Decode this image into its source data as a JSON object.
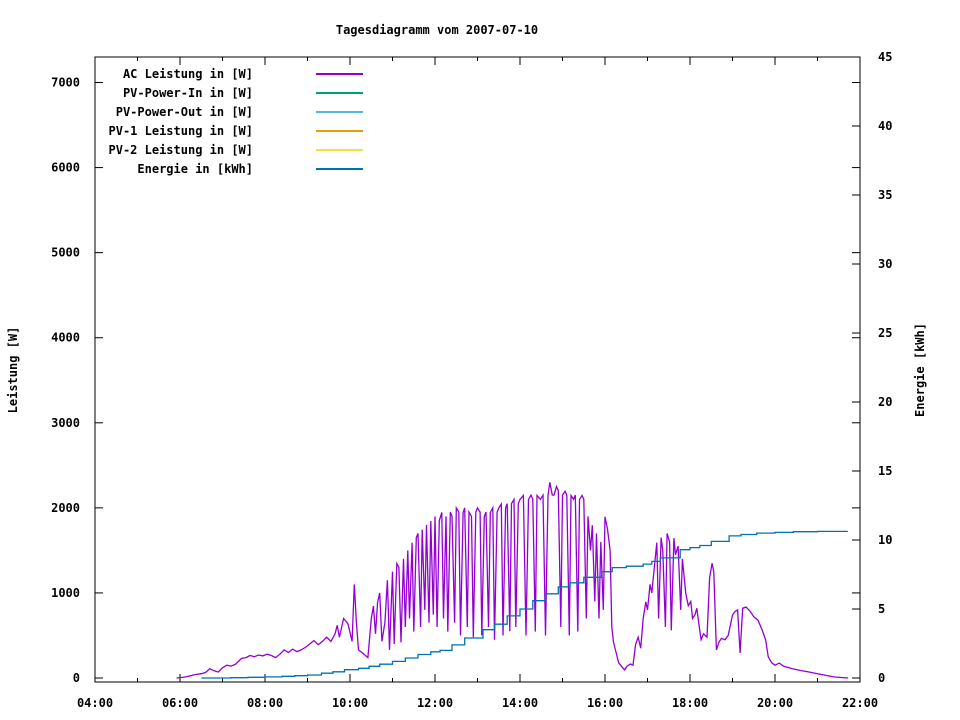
{
  "title": "Tagesdiagramm vom 2007-07-10",
  "chart_data": {
    "type": "line",
    "title": "Tagesdiagramm vom 2007-07-10",
    "legend_position": "top-left-inside",
    "grid": false,
    "x_axis": {
      "label": "",
      "unit": "time",
      "range_hours": [
        4,
        22
      ],
      "major_ticks": [
        {
          "hour": 4,
          "label": "04:00"
        },
        {
          "hour": 6,
          "label": "06:00"
        },
        {
          "hour": 8,
          "label": "08:00"
        },
        {
          "hour": 10,
          "label": "10:00"
        },
        {
          "hour": 12,
          "label": "12:00"
        },
        {
          "hour": 14,
          "label": "14:00"
        },
        {
          "hour": 16,
          "label": "16:00"
        },
        {
          "hour": 18,
          "label": "18:00"
        },
        {
          "hour": 20,
          "label": "20:00"
        },
        {
          "hour": 22,
          "label": "22:00"
        }
      ],
      "minor_tick_hours": [
        5,
        7,
        9,
        11,
        13,
        15,
        17,
        19,
        21
      ]
    },
    "y_left": {
      "label": "Leistung [W]",
      "range": [
        0,
        7300
      ],
      "tick_values": [
        0,
        1000,
        2000,
        3000,
        4000,
        5000,
        6000,
        7000
      ],
      "tick_labels": [
        "0",
        "1000",
        "2000",
        "3000",
        "4000",
        "5000",
        "6000",
        "7000"
      ]
    },
    "y_right": {
      "label": "Energie [kWh]",
      "range": [
        0,
        45
      ],
      "tick_values": [
        0,
        5,
        10,
        15,
        20,
        25,
        30,
        35,
        40,
        45
      ],
      "tick_labels": [
        "0",
        "5",
        "10",
        "15",
        "20",
        "25",
        "30",
        "35",
        "40",
        "45"
      ]
    },
    "series": [
      {
        "name": "AC Leistung in [W]",
        "color": "#9400d3",
        "axis": "left",
        "style": "line",
        "points": [
          [
            5.92,
            0
          ],
          [
            6.1,
            10
          ],
          [
            6.2,
            20
          ],
          [
            6.35,
            40
          ],
          [
            6.5,
            50
          ],
          [
            6.6,
            65
          ],
          [
            6.7,
            110
          ],
          [
            6.8,
            85
          ],
          [
            6.9,
            70
          ],
          [
            7.0,
            120
          ],
          [
            7.1,
            150
          ],
          [
            7.2,
            140
          ],
          [
            7.3,
            160
          ],
          [
            7.45,
            230
          ],
          [
            7.55,
            240
          ],
          [
            7.65,
            265
          ],
          [
            7.75,
            250
          ],
          [
            7.85,
            270
          ],
          [
            7.95,
            260
          ],
          [
            8.05,
            280
          ],
          [
            8.15,
            265
          ],
          [
            8.25,
            240
          ],
          [
            8.35,
            280
          ],
          [
            8.45,
            330
          ],
          [
            8.55,
            300
          ],
          [
            8.65,
            340
          ],
          [
            8.75,
            310
          ],
          [
            8.85,
            330
          ],
          [
            8.95,
            360
          ],
          [
            9.05,
            400
          ],
          [
            9.15,
            440
          ],
          [
            9.25,
            390
          ],
          [
            9.35,
            430
          ],
          [
            9.45,
            480
          ],
          [
            9.55,
            430
          ],
          [
            9.65,
            520
          ],
          [
            9.7,
            620
          ],
          [
            9.75,
            480
          ],
          [
            9.85,
            700
          ],
          [
            9.95,
            640
          ],
          [
            10.05,
            430
          ],
          [
            10.1,
            1100
          ],
          [
            10.15,
            650
          ],
          [
            10.2,
            330
          ],
          [
            10.3,
            290
          ],
          [
            10.42,
            240
          ],
          [
            10.5,
            700
          ],
          [
            10.55,
            845
          ],
          [
            10.6,
            520
          ],
          [
            10.65,
            890
          ],
          [
            10.7,
            1000
          ],
          [
            10.75,
            430
          ],
          [
            10.82,
            650
          ],
          [
            10.88,
            1150
          ],
          [
            10.93,
            330
          ],
          [
            11.0,
            1250
          ],
          [
            11.04,
            400
          ],
          [
            11.1,
            1345
          ],
          [
            11.15,
            1300
          ],
          [
            11.2,
            420
          ],
          [
            11.26,
            1400
          ],
          [
            11.3,
            600
          ],
          [
            11.36,
            1500
          ],
          [
            11.4,
            700
          ],
          [
            11.46,
            1590
          ],
          [
            11.5,
            545
          ],
          [
            11.56,
            1650
          ],
          [
            11.6,
            1700
          ],
          [
            11.66,
            600
          ],
          [
            11.7,
            1745
          ],
          [
            11.76,
            800
          ],
          [
            11.8,
            1800
          ],
          [
            11.86,
            650
          ],
          [
            11.9,
            1845
          ],
          [
            11.96,
            745
          ],
          [
            12.0,
            1900
          ],
          [
            12.05,
            600
          ],
          [
            12.1,
            1850
          ],
          [
            12.16,
            1945
          ],
          [
            12.2,
            700
          ],
          [
            12.26,
            1900
          ],
          [
            12.3,
            545
          ],
          [
            12.36,
            1950
          ],
          [
            12.4,
            1900
          ],
          [
            12.46,
            650
          ],
          [
            12.5,
            2000
          ],
          [
            12.56,
            1950
          ],
          [
            12.6,
            500
          ],
          [
            12.66,
            1945
          ],
          [
            12.7,
            2000
          ],
          [
            12.76,
            600
          ],
          [
            12.8,
            1950
          ],
          [
            12.86,
            1900
          ],
          [
            12.9,
            480
          ],
          [
            12.96,
            1950
          ],
          [
            13.0,
            2000
          ],
          [
            13.06,
            1950
          ],
          [
            13.1,
            500
          ],
          [
            13.16,
            1900
          ],
          [
            13.2,
            1950
          ],
          [
            13.26,
            600
          ],
          [
            13.3,
            1945
          ],
          [
            13.36,
            2000
          ],
          [
            13.4,
            450
          ],
          [
            13.46,
            1950
          ],
          [
            13.5,
            2000
          ],
          [
            13.56,
            2045
          ],
          [
            13.6,
            500
          ],
          [
            13.66,
            2000
          ],
          [
            13.7,
            2050
          ],
          [
            13.76,
            550
          ],
          [
            13.8,
            2050
          ],
          [
            13.86,
            2100
          ],
          [
            13.9,
            600
          ],
          [
            13.96,
            2050
          ],
          [
            14.0,
            2100
          ],
          [
            14.08,
            2145
          ],
          [
            14.14,
            500
          ],
          [
            14.2,
            2100
          ],
          [
            14.26,
            2150
          ],
          [
            14.3,
            2100
          ],
          [
            14.36,
            545
          ],
          [
            14.4,
            2145
          ],
          [
            14.48,
            2100
          ],
          [
            14.54,
            2150
          ],
          [
            14.6,
            500
          ],
          [
            14.66,
            2145
          ],
          [
            14.7,
            2300
          ],
          [
            14.76,
            2150
          ],
          [
            14.8,
            2150
          ],
          [
            14.86,
            2250
          ],
          [
            14.9,
            2200
          ],
          [
            14.96,
            600
          ],
          [
            15.0,
            2150
          ],
          [
            15.06,
            2195
          ],
          [
            15.1,
            2150
          ],
          [
            15.16,
            500
          ],
          [
            15.2,
            2145
          ],
          [
            15.26,
            2100
          ],
          [
            15.3,
            2150
          ],
          [
            15.36,
            545
          ],
          [
            15.4,
            2100
          ],
          [
            15.46,
            2145
          ],
          [
            15.5,
            2100
          ],
          [
            15.56,
            700
          ],
          [
            15.6,
            1900
          ],
          [
            15.66,
            1500
          ],
          [
            15.7,
            1795
          ],
          [
            15.76,
            900
          ],
          [
            15.8,
            1700
          ],
          [
            15.86,
            700
          ],
          [
            15.9,
            1600
          ],
          [
            15.96,
            800
          ],
          [
            16.0,
            1895
          ],
          [
            16.06,
            1750
          ],
          [
            16.12,
            1500
          ],
          [
            16.16,
            600
          ],
          [
            16.2,
            420
          ],
          [
            16.26,
            300
          ],
          [
            16.32,
            180
          ],
          [
            16.4,
            130
          ],
          [
            16.46,
            95
          ],
          [
            16.52,
            140
          ],
          [
            16.6,
            165
          ],
          [
            16.66,
            150
          ],
          [
            16.72,
            395
          ],
          [
            16.78,
            480
          ],
          [
            16.84,
            350
          ],
          [
            16.9,
            700
          ],
          [
            16.96,
            895
          ],
          [
            17.0,
            800
          ],
          [
            17.06,
            1100
          ],
          [
            17.1,
            1000
          ],
          [
            17.16,
            1300
          ],
          [
            17.22,
            1590
          ],
          [
            17.26,
            700
          ],
          [
            17.32,
            1650
          ],
          [
            17.36,
            1495
          ],
          [
            17.42,
            600
          ],
          [
            17.46,
            1700
          ],
          [
            17.52,
            1600
          ],
          [
            17.56,
            560
          ],
          [
            17.62,
            1645
          ],
          [
            17.66,
            1450
          ],
          [
            17.72,
            1550
          ],
          [
            17.78,
            800
          ],
          [
            17.82,
            1400
          ],
          [
            17.9,
            1000
          ],
          [
            17.96,
            850
          ],
          [
            18.02,
            900
          ],
          [
            18.06,
            700
          ],
          [
            18.12,
            745
          ],
          [
            18.16,
            820
          ],
          [
            18.22,
            600
          ],
          [
            18.26,
            450
          ],
          [
            18.32,
            520
          ],
          [
            18.4,
            480
          ],
          [
            18.46,
            1180
          ],
          [
            18.52,
            1350
          ],
          [
            18.56,
            1245
          ],
          [
            18.62,
            330
          ],
          [
            18.68,
            420
          ],
          [
            18.74,
            465
          ],
          [
            18.82,
            450
          ],
          [
            18.9,
            500
          ],
          [
            19.0,
            740
          ],
          [
            19.06,
            780
          ],
          [
            19.12,
            800
          ],
          [
            19.18,
            295
          ],
          [
            19.24,
            820
          ],
          [
            19.32,
            835
          ],
          [
            19.42,
            780
          ],
          [
            19.5,
            720
          ],
          [
            19.6,
            680
          ],
          [
            19.7,
            560
          ],
          [
            19.78,
            445
          ],
          [
            19.84,
            250
          ],
          [
            19.92,
            180
          ],
          [
            20.0,
            150
          ],
          [
            20.1,
            175
          ],
          [
            20.2,
            140
          ],
          [
            20.4,
            110
          ],
          [
            20.6,
            88
          ],
          [
            20.8,
            70
          ],
          [
            21.0,
            50
          ],
          [
            21.2,
            30
          ],
          [
            21.4,
            12
          ],
          [
            21.6,
            5
          ],
          [
            21.72,
            0
          ]
        ]
      },
      {
        "name": "PV-Power-In in [W]",
        "color": "#009e73",
        "axis": "left",
        "style": "line",
        "points": []
      },
      {
        "name": "PV-Power-Out in [W]",
        "color": "#56b4e9",
        "axis": "left",
        "style": "line",
        "points": []
      },
      {
        "name": "PV-1 Leistung in [W]",
        "color": "#e69f00",
        "axis": "left",
        "style": "line",
        "points": []
      },
      {
        "name": "PV-2 Leistung in [W]",
        "color": "#f0e442",
        "axis": "left",
        "style": "line",
        "points": []
      },
      {
        "name": "Energie in [kWh]",
        "color": "#0072b2",
        "axis": "right",
        "style": "steps",
        "points": [
          [
            6.5,
            0
          ],
          [
            7.2,
            0.02
          ],
          [
            7.6,
            0.05
          ],
          [
            8.0,
            0.08
          ],
          [
            8.4,
            0.12
          ],
          [
            8.7,
            0.17
          ],
          [
            9.0,
            0.22
          ],
          [
            9.33,
            0.35
          ],
          [
            9.6,
            0.45
          ],
          [
            9.87,
            0.6
          ],
          [
            10.2,
            0.7
          ],
          [
            10.45,
            0.85
          ],
          [
            10.7,
            1.0
          ],
          [
            11.0,
            1.2
          ],
          [
            11.3,
            1.45
          ],
          [
            11.6,
            1.7
          ],
          [
            11.9,
            1.9
          ],
          [
            12.12,
            2.0
          ],
          [
            12.4,
            2.4
          ],
          [
            12.7,
            2.9
          ],
          [
            13.13,
            3.5
          ],
          [
            13.4,
            3.9
          ],
          [
            13.7,
            4.5
          ],
          [
            14.0,
            5.0
          ],
          [
            14.3,
            5.6
          ],
          [
            14.6,
            6.1
          ],
          [
            14.9,
            6.6
          ],
          [
            15.18,
            6.9
          ],
          [
            15.5,
            7.3
          ],
          [
            15.92,
            7.7
          ],
          [
            16.17,
            8.0
          ],
          [
            16.5,
            8.1
          ],
          [
            16.9,
            8.25
          ],
          [
            17.1,
            8.45
          ],
          [
            17.3,
            8.7
          ],
          [
            17.77,
            9.3
          ],
          [
            18.0,
            9.45
          ],
          [
            18.23,
            9.6
          ],
          [
            18.5,
            9.9
          ],
          [
            18.92,
            10.3
          ],
          [
            19.2,
            10.4
          ],
          [
            19.57,
            10.5
          ],
          [
            20.0,
            10.55
          ],
          [
            20.43,
            10.6
          ],
          [
            21.0,
            10.62
          ],
          [
            21.7,
            10.65
          ]
        ]
      }
    ]
  }
}
